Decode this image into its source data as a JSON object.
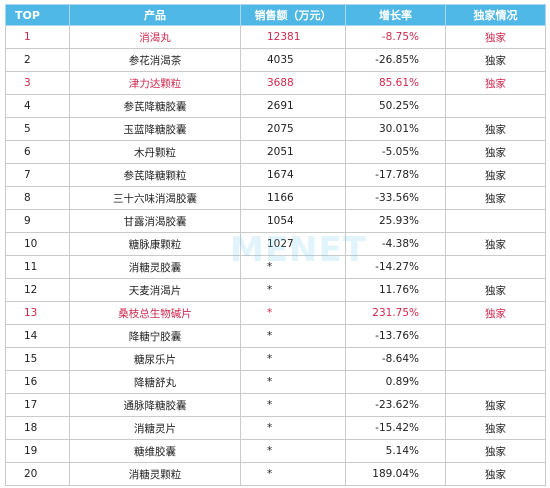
{
  "columns": {
    "top": "TOP",
    "product": "产品",
    "sales": "销售额（万元）",
    "growth": "增长率",
    "exclusive": "独家情况"
  },
  "rows": [
    {
      "rank": "1",
      "product": "消渴丸",
      "sales": "12381",
      "growth": "-8.75%",
      "exclusive": "独家",
      "highlight": true
    },
    {
      "rank": "2",
      "product": "参花消渴茶",
      "sales": "4035",
      "growth": "-26.85%",
      "exclusive": "独家",
      "highlight": false
    },
    {
      "rank": "3",
      "product": "津力达颗粒",
      "sales": "3688",
      "growth": "85.61%",
      "exclusive": "独家",
      "highlight": true
    },
    {
      "rank": "4",
      "product": "参芪降糖胶囊",
      "sales": "2691",
      "growth": "50.25%",
      "exclusive": "",
      "highlight": false
    },
    {
      "rank": "5",
      "product": "玉蓝降糖胶囊",
      "sales": "2075",
      "growth": "30.01%",
      "exclusive": "独家",
      "highlight": false
    },
    {
      "rank": "6",
      "product": "木丹颗粒",
      "sales": "2051",
      "growth": "-5.05%",
      "exclusive": "独家",
      "highlight": false
    },
    {
      "rank": "7",
      "product": "参芪降糖颗粒",
      "sales": "1674",
      "growth": "-17.78%",
      "exclusive": "独家",
      "highlight": false
    },
    {
      "rank": "8",
      "product": "三十六味消渴胶囊",
      "sales": "1166",
      "growth": "-33.56%",
      "exclusive": "独家",
      "highlight": false
    },
    {
      "rank": "9",
      "product": "甘露消渴胶囊",
      "sales": "1054",
      "growth": "25.93%",
      "exclusive": "",
      "highlight": false
    },
    {
      "rank": "10",
      "product": "糖脉康颗粒",
      "sales": "1027",
      "growth": "-4.38%",
      "exclusive": "独家",
      "highlight": false
    },
    {
      "rank": "11",
      "product": "消糖灵胶囊",
      "sales": "*",
      "growth": "-14.27%",
      "exclusive": "",
      "highlight": false
    },
    {
      "rank": "12",
      "product": "天麦消渴片",
      "sales": "*",
      "growth": "11.76%",
      "exclusive": "独家",
      "highlight": false
    },
    {
      "rank": "13",
      "product": "桑枝总生物碱片",
      "sales": "*",
      "growth": "231.75%",
      "exclusive": "独家",
      "highlight": true
    },
    {
      "rank": "14",
      "product": "降糖宁胶囊",
      "sales": "*",
      "growth": "-13.76%",
      "exclusive": "",
      "highlight": false
    },
    {
      "rank": "15",
      "product": "糖尿乐片",
      "sales": "*",
      "growth": "-8.64%",
      "exclusive": "",
      "highlight": false
    },
    {
      "rank": "16",
      "product": "降糖舒丸",
      "sales": "*",
      "growth": "0.89%",
      "exclusive": "",
      "highlight": false
    },
    {
      "rank": "17",
      "product": "通脉降糖胶囊",
      "sales": "*",
      "growth": "-23.62%",
      "exclusive": "独家",
      "highlight": false
    },
    {
      "rank": "18",
      "product": "消糖灵片",
      "sales": "*",
      "growth": "-15.42%",
      "exclusive": "独家",
      "highlight": false
    },
    {
      "rank": "19",
      "product": "糖维胶囊",
      "sales": "*",
      "growth": "5.14%",
      "exclusive": "独家",
      "highlight": false
    },
    {
      "rank": "20",
      "product": "消糖灵颗粒",
      "sales": "*",
      "growth": "189.04%",
      "exclusive": "独家",
      "highlight": false
    }
  ],
  "watermark": "米内网MENET"
}
